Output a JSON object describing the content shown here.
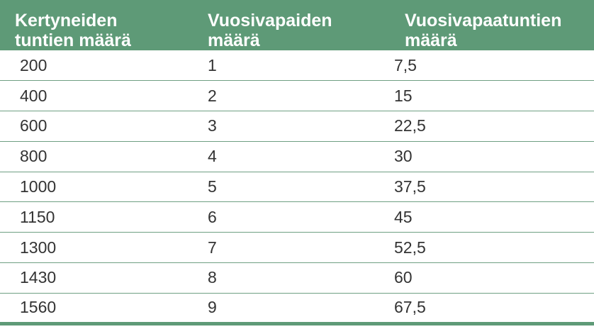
{
  "table": {
    "headers": [
      [
        "Kertyneiden",
        "tuntien määrä"
      ],
      [
        "Vuosivapaiden",
        "määrä"
      ],
      [
        "Vuosivapaatuntien",
        "määrä"
      ]
    ],
    "rows": [
      [
        "200",
        "1",
        "7,5"
      ],
      [
        "400",
        "2",
        "15"
      ],
      [
        "600",
        "3",
        "22,5"
      ],
      [
        "800",
        "4",
        "30"
      ],
      [
        "1000",
        "5",
        "37,5"
      ],
      [
        "1150",
        "6",
        "45"
      ],
      [
        "1300",
        "7",
        "52,5"
      ],
      [
        "1430",
        "8",
        "60"
      ],
      [
        "1560",
        "9",
        "67,5"
      ]
    ]
  },
  "colors": {
    "header_bg": "#5e9a77",
    "header_text": "#ffffff",
    "row_border": "#6f9f83",
    "cell_text": "#333333"
  }
}
